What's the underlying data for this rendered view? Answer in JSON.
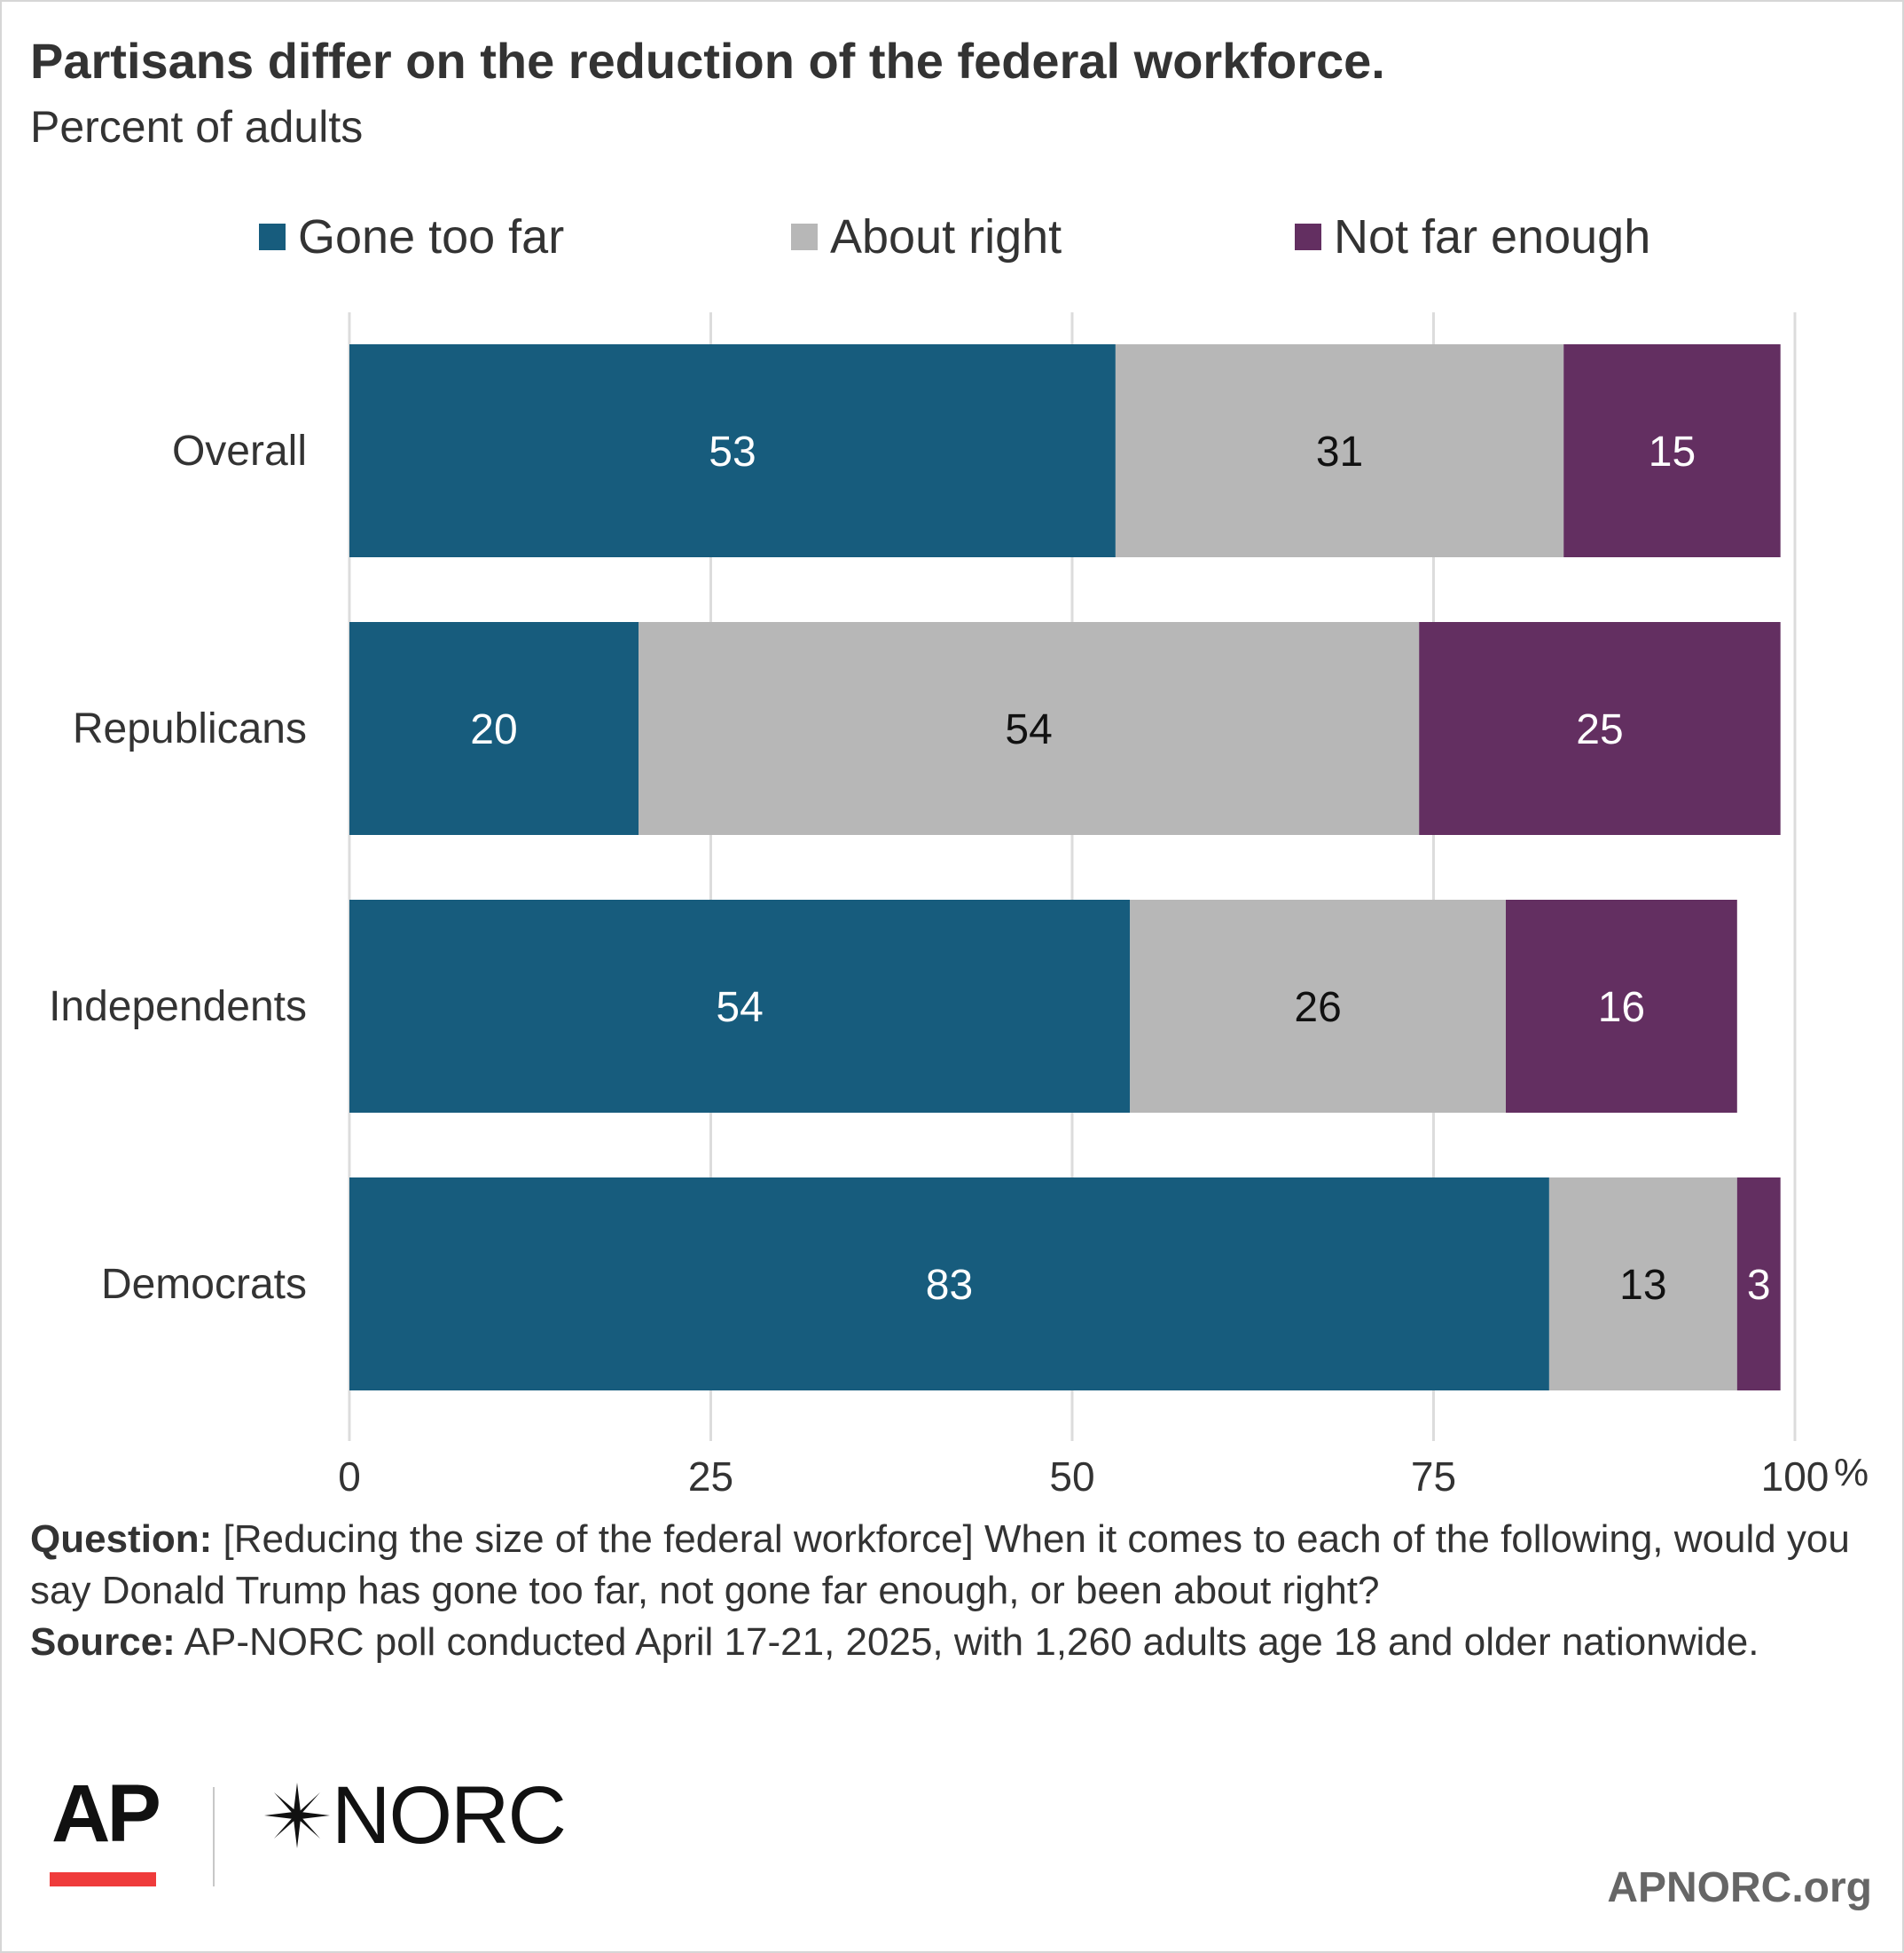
{
  "chart_data": {
    "type": "bar",
    "orientation": "horizontal",
    "stacked": true,
    "title": "Partisans differ on the reduction of the federal workforce.",
    "subtitle": "Percent of adults",
    "categories": [
      "Overall",
      "Republicans",
      "Independents",
      "Democrats"
    ],
    "series": [
      {
        "name": "Gone too far",
        "color": "#175c7d",
        "values": [
          53,
          20,
          54,
          83
        ]
      },
      {
        "name": "About right",
        "color": "#b7b7b7",
        "values": [
          31,
          54,
          26,
          13
        ]
      },
      {
        "name": "Not far enough",
        "color": "#632f61",
        "values": [
          15,
          25,
          16,
          3
        ]
      }
    ],
    "xlim": [
      0,
      100
    ],
    "xticks": [
      "0",
      "25",
      "50",
      "75",
      "100"
    ],
    "x_unit": "%",
    "grid": true,
    "legend": "top"
  },
  "footnote": {
    "question_label": "Question:",
    "question_text": " [Reducing the size of the federal workforce] When it comes to each of the following, would you say Donald Trump has gone too far, not gone far enough, or been about right?",
    "source_label": "Source:",
    "source_text": " AP-NORC poll conducted April 17-21, 2025, with 1,260 adults age 18 and older nationwide."
  },
  "branding": {
    "ap": "AP",
    "norc": "NORC",
    "website": "APNORC.org",
    "ap_accent": "#ef3b3b"
  }
}
